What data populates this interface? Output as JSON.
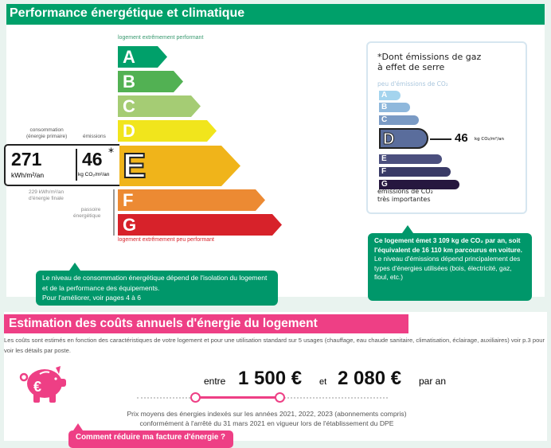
{
  "performance": {
    "title": "Performance énergétique et climatique",
    "top_label": "logement extrêmement performant",
    "bottom_label": "logement extrêmement peu performant",
    "classes": [
      {
        "letter": "A",
        "color": "#00a06a"
      },
      {
        "letter": "B",
        "color": "#52b153"
      },
      {
        "letter": "C",
        "color": "#a5cc74"
      },
      {
        "letter": "D",
        "color": "#f1e51c"
      },
      {
        "letter": "E",
        "color": "#f0b41a"
      },
      {
        "letter": "F",
        "color": "#ec8a33"
      },
      {
        "letter": "G",
        "color": "#d7222a"
      }
    ],
    "current_class": "E",
    "consumption_label": "consommation\n(énergie primaire)",
    "emissions_label": "émissions",
    "consumption_value": "271",
    "consumption_unit": "kWh/m²/an",
    "emissions_value": "46",
    "emissions_star": "*",
    "emissions_unit": "kg CO₂/m²/an",
    "final_energy": "229 kWh/m²/an\nd'énergie finale",
    "passoire": "passoire\nénergétique",
    "tip": {
      "line1": "Le niveau de consommation énergétique dépend de l'isolation du logement et de la performance des équipements.",
      "line2": "Pour l'améliorer, voir pages 4 à 6"
    }
  },
  "ges": {
    "title": "*Dont émissions de gaz\nà effet de serre",
    "top_label": "peu d'émissions de CO₂",
    "bottom_label": "émissions de CO₂\ntrès importantes",
    "classes": [
      {
        "letter": "A",
        "color": "#a4d4ee"
      },
      {
        "letter": "B",
        "color": "#8fb8dc"
      },
      {
        "letter": "C",
        "color": "#7a9ac4"
      },
      {
        "letter": "D",
        "color": "#5a6d9c"
      },
      {
        "letter": "E",
        "color": "#4b4f7e"
      },
      {
        "letter": "F",
        "color": "#393a66"
      },
      {
        "letter": "G",
        "color": "#26173f"
      }
    ],
    "current_class": "D",
    "value": "46",
    "unit": "kg CO₂/m²/an",
    "tip": {
      "bold": "Ce logement émet 3 109 kg de CO₂ par an, soit l'équivalent de 16 110 km parcourus en voiture.",
      "text": "Le niveau d'émissions dépend principalement des types d'énergies utilisées (bois, électricité, gaz, fioul, etc.)"
    }
  },
  "costs": {
    "title": "Estimation des coûts annuels d'énergie du logement",
    "description": "Les coûts sont estimés en fonction des caractéristiques de votre logement et pour une utilisation standard sur 5 usages (chauffage, eau chaude sanitaire, climatisation, éclairage, auxiliaires) voir p.3 pour voir les détails par poste.",
    "between": "entre",
    "min": "1 500 €",
    "and": "et",
    "max": "2 080 €",
    "per_year": "par an",
    "note": "Prix moyens des énergies indexés sur les années 2021, 2022, 2023 (abonnements compris) conformément à l'arrêté du 31 mars 2021 en vigueur lors de l'établissement du DPE",
    "reduce_button": "Comment réduire ma facture d'énergie ?",
    "accent": "#ee3f85"
  }
}
